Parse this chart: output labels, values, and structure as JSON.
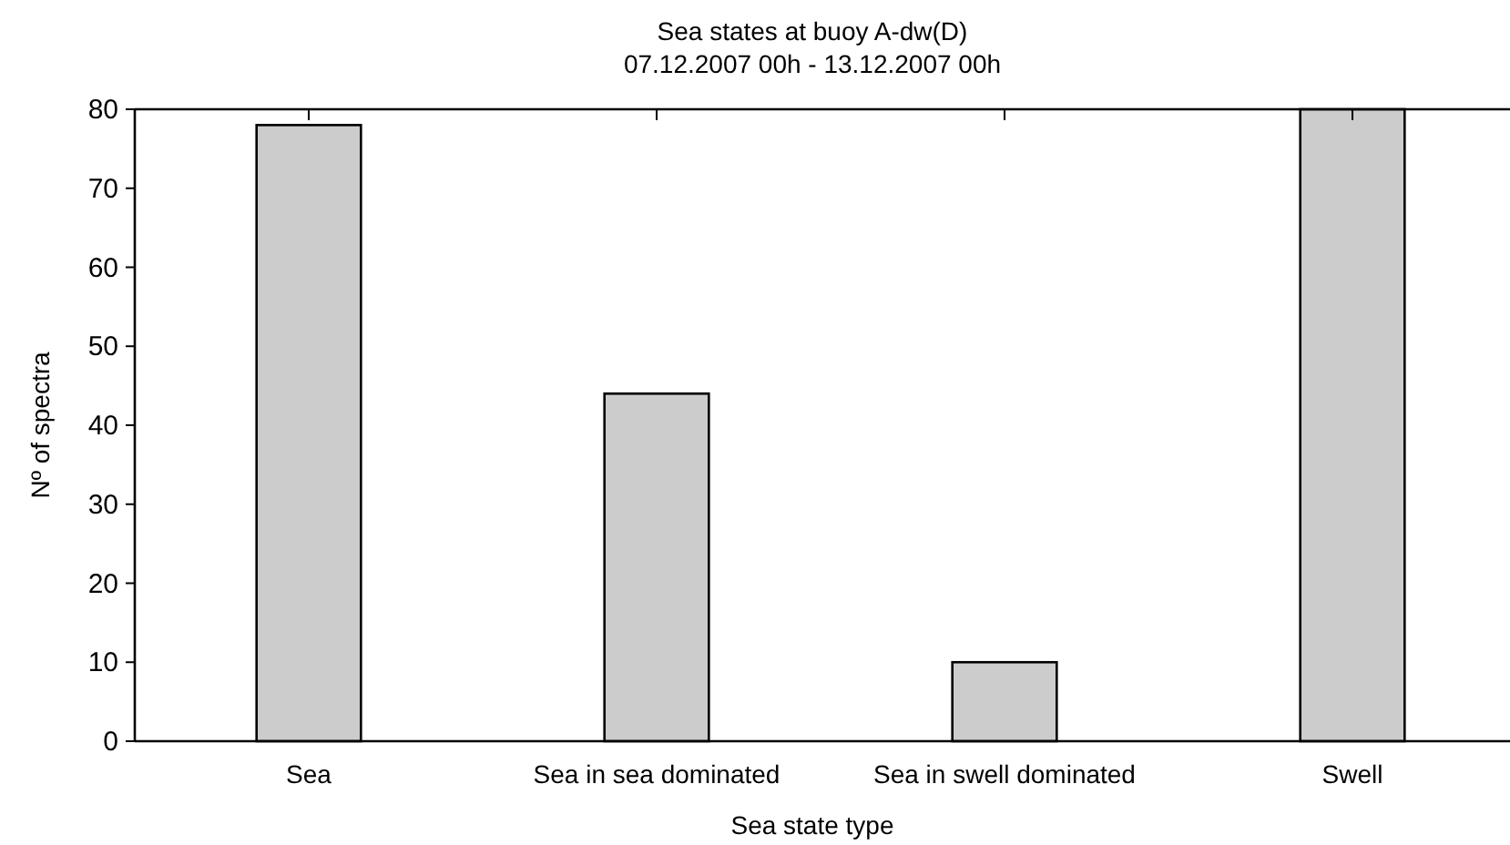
{
  "chart_data": {
    "type": "bar",
    "title": "Sea states at buoy A-dw(D)",
    "subtitle": "07.12.2007 00h - 13.12.2007 00h",
    "xlabel": "Sea state type",
    "ylabel": "Nº of spectra",
    "categories": [
      "Sea",
      "Sea in sea dominated",
      "Sea in swell dominated",
      "Swell"
    ],
    "values": [
      78,
      44,
      10,
      80
    ],
    "color": "#cccccc",
    "ylim": [
      0,
      80
    ],
    "yticks": [
      0,
      10,
      20,
      30,
      40,
      50,
      60,
      70,
      80
    ],
    "grid": false
  }
}
